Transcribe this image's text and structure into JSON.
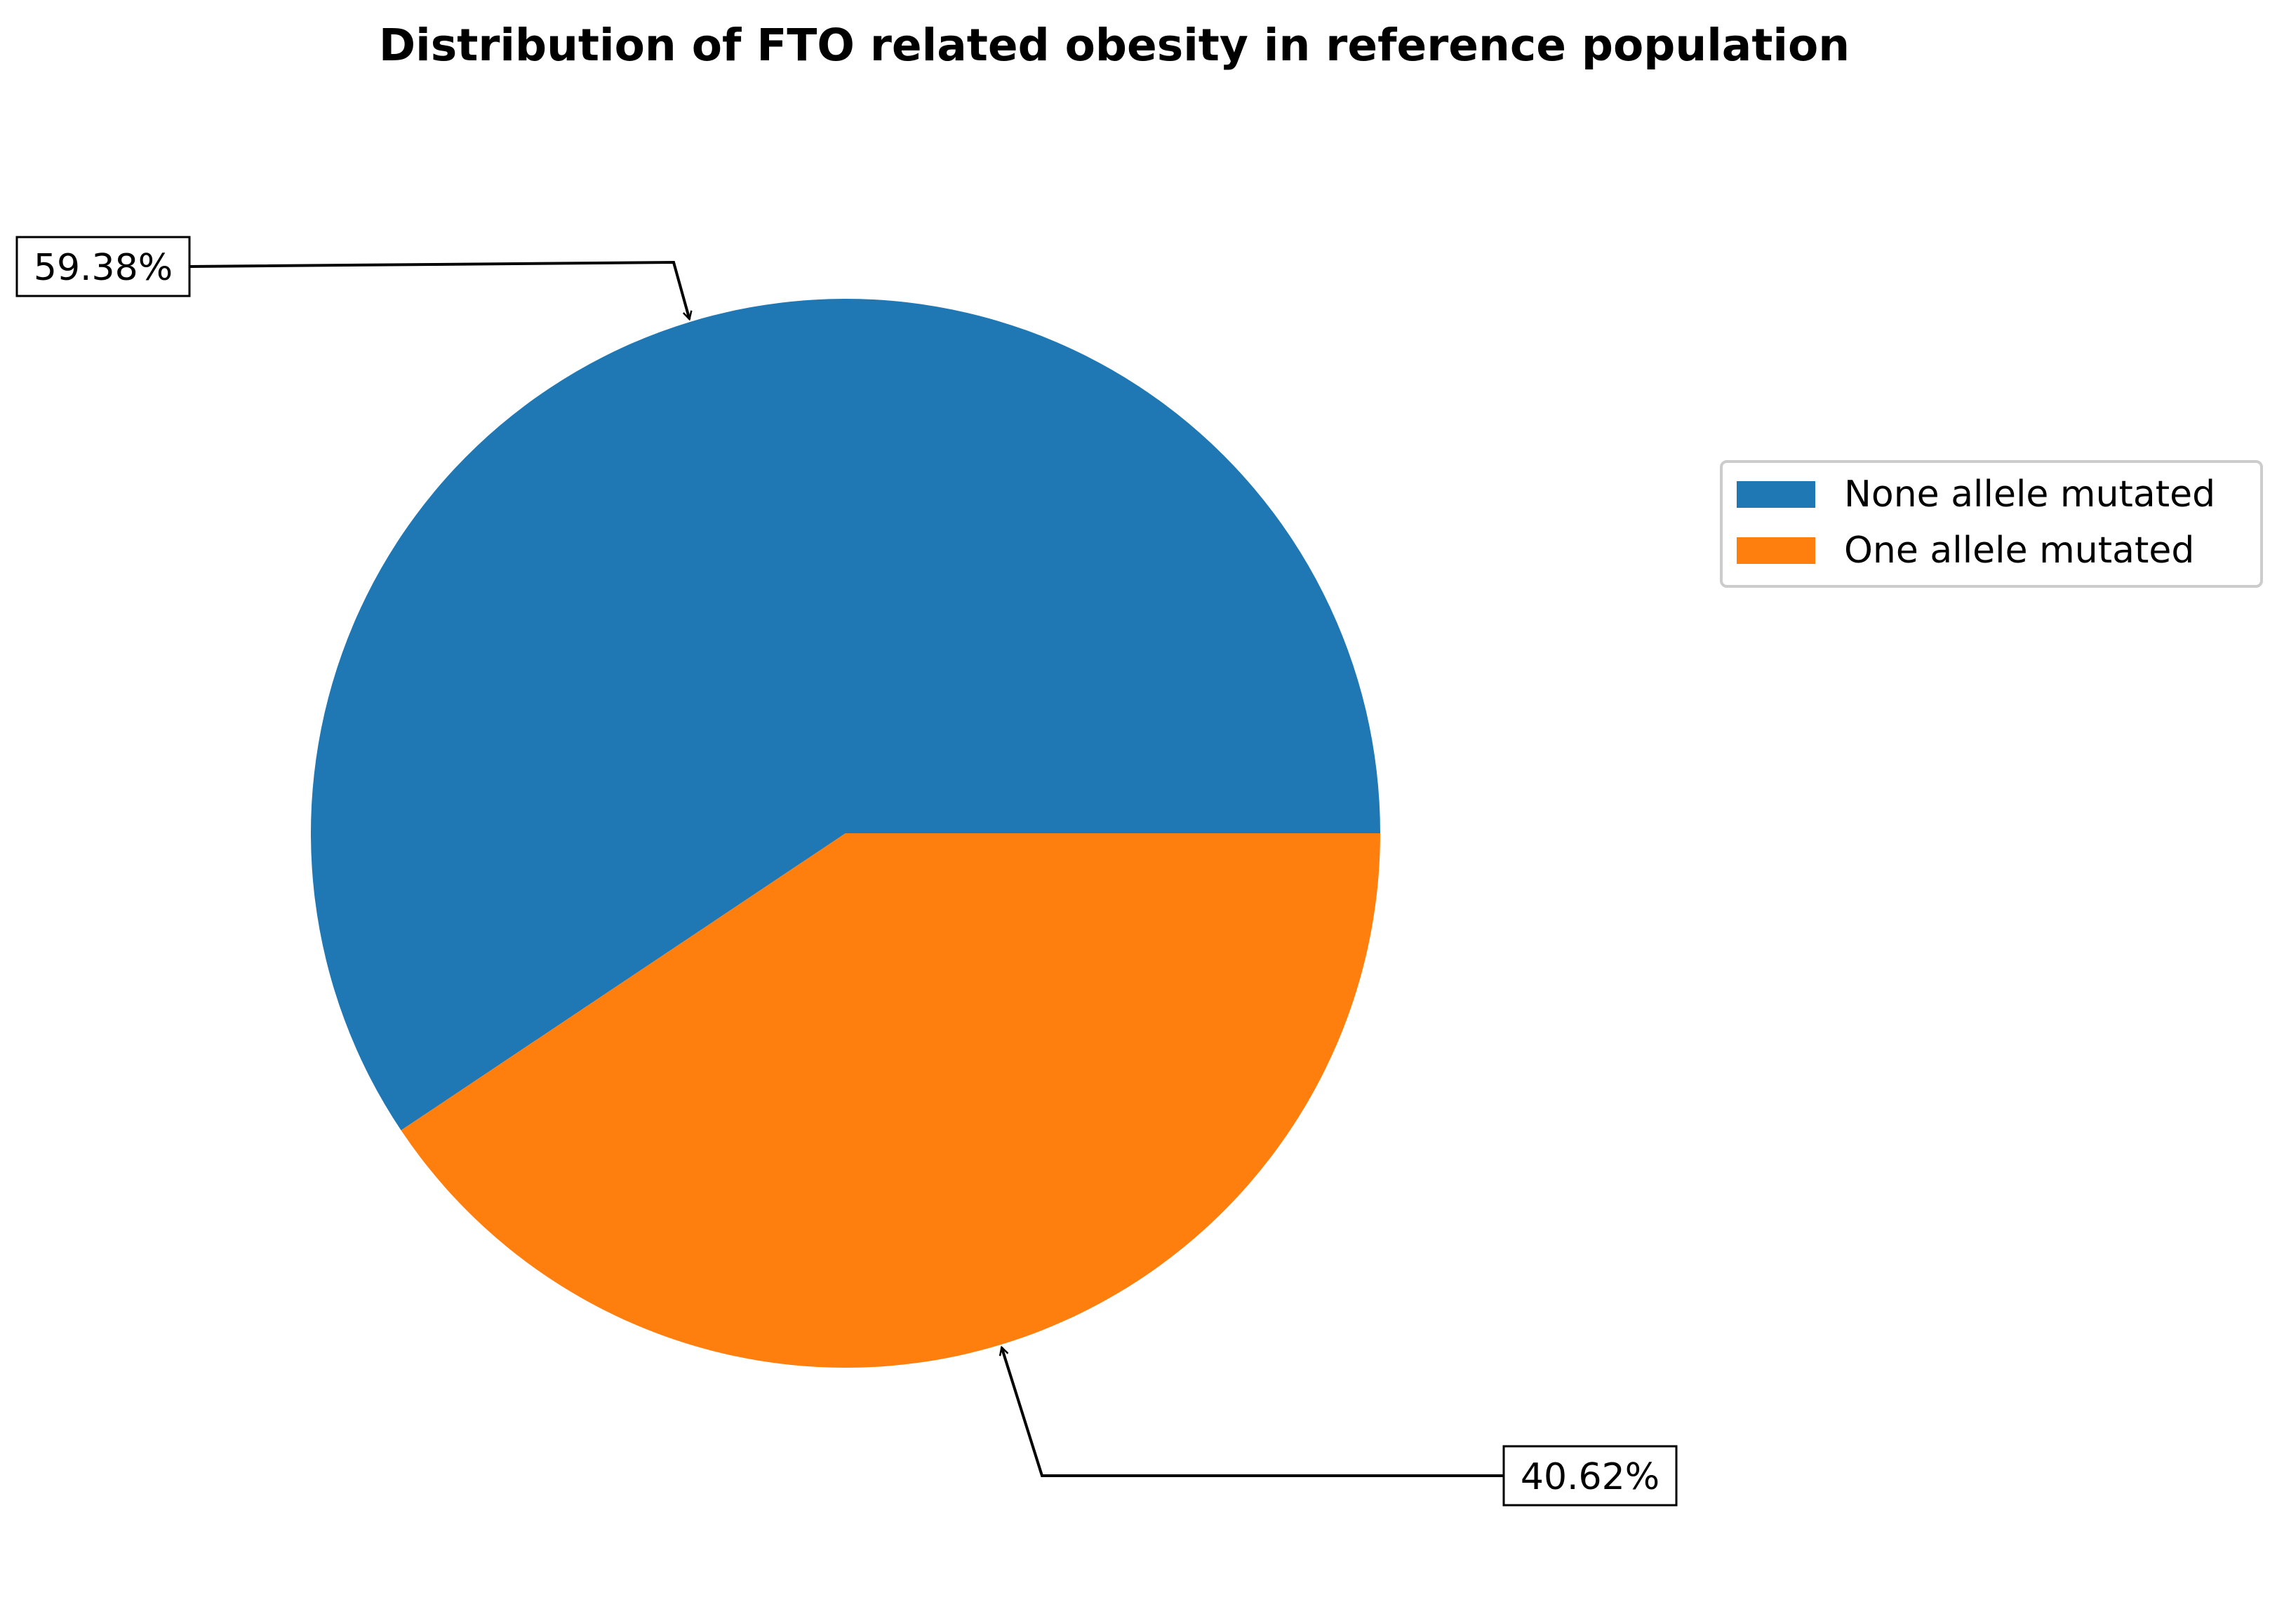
{
  "chart_data": {
    "type": "pie",
    "title": "Distribution of FTO related obesity in reference population",
    "categories": [
      "None allele mutated",
      "One allele mutated"
    ],
    "values": [
      59.38,
      40.62
    ],
    "labels": [
      "59.38%",
      "40.62%"
    ],
    "colors": [
      "#1f77b4",
      "#ff7f0e"
    ],
    "start_angle": 0,
    "direction": "counterclockwise",
    "legend": {
      "position": "right",
      "entries": [
        "None allele mutated",
        "One allele mutated"
      ]
    }
  }
}
